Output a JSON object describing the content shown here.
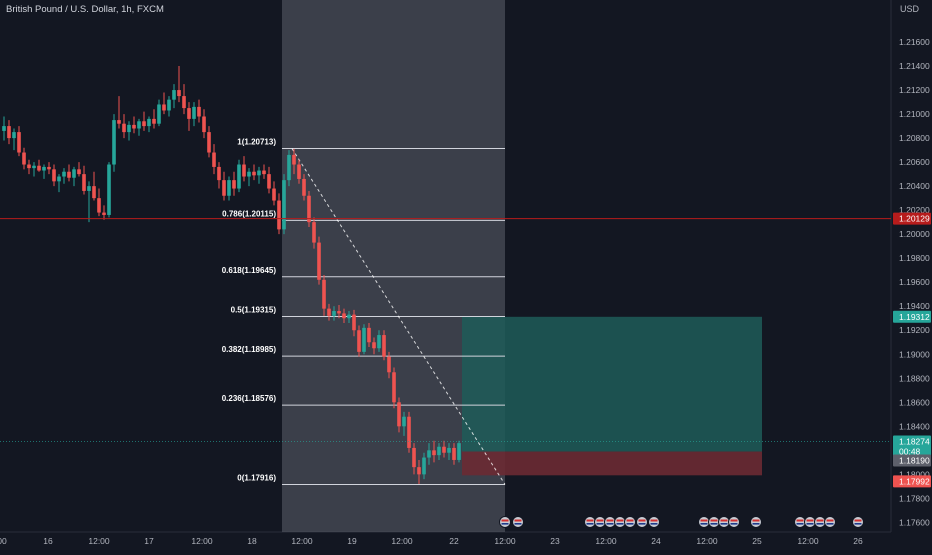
{
  "header": {
    "symbol_title": "British Pound / U.S. Dollar, 1h, FXCM",
    "currency": "USD"
  },
  "colors": {
    "background": "#131722",
    "up": "#26a69a",
    "down": "#ef5350",
    "grid_text": "#b2b5be",
    "fib_line": "#d1d4dc",
    "fib_zone": "#5d606b",
    "target_zone": "#1f5c58",
    "stop_zone": "#6b2a33",
    "current_price_line": "#b71c1c"
  },
  "chart_data": {
    "type": "candlestick",
    "title": "British Pound / U.S. Dollar, 1h, FXCM",
    "y_axis": {
      "side": "right",
      "range": [
        1.1752,
        1.2195
      ],
      "ticks": [
        "1.21600",
        "1.21400",
        "1.21200",
        "1.21000",
        "1.20800",
        "1.20600",
        "1.20400",
        "1.20200",
        "1.20000",
        "1.19800",
        "1.19600",
        "1.19400",
        "1.19200",
        "1.19000",
        "1.18800",
        "1.18600",
        "1.18400",
        "1.18200",
        "1.18000",
        "1.17800",
        "1.17600"
      ]
    },
    "x_axis": {
      "ticks": [
        "00",
        "16",
        "12:00",
        "17",
        "12:00",
        "18",
        "12:00",
        "19",
        "12:00",
        "22",
        "12:00",
        "23",
        "12:00",
        "24",
        "12:00",
        "25",
        "12:00",
        "26"
      ]
    },
    "price_labels": [
      {
        "id": "red-line",
        "value": "1.20129",
        "kind": "line"
      },
      {
        "id": "target",
        "value": "1.19312",
        "kind": "target"
      },
      {
        "id": "current",
        "value": "1.18274",
        "kind": "current"
      },
      {
        "id": "countdown",
        "value": "00:48",
        "kind": "countdown"
      },
      {
        "id": "entry",
        "value": "1.18190",
        "kind": "entry"
      },
      {
        "id": "stop",
        "value": "1.17992",
        "kind": "stop"
      }
    ],
    "fibonacci": [
      {
        "label": "1(1.20713)",
        "price": 1.20713
      },
      {
        "label": "0.786(1.20115)",
        "price": 1.20115
      },
      {
        "label": "0.618(1.19645)",
        "price": 1.19645
      },
      {
        "label": "0.5(1.19315)",
        "price": 1.19315
      },
      {
        "label": "0.382(1.18985)",
        "price": 1.18985
      },
      {
        "label": "0.236(1.18576)",
        "price": 1.18576
      },
      {
        "label": "0(1.17916)",
        "price": 1.17916
      }
    ],
    "position": {
      "target": 1.19312,
      "entry": 1.1819,
      "stop": 1.17992
    },
    "candles": [
      {
        "o": 1.2086,
        "h": 1.2098,
        "l": 1.2078,
        "c": 1.209
      },
      {
        "o": 1.209,
        "h": 1.2095,
        "l": 1.2075,
        "c": 1.208
      },
      {
        "o": 1.208,
        "h": 1.2088,
        "l": 1.207,
        "c": 1.2085
      },
      {
        "o": 1.2085,
        "h": 1.209,
        "l": 1.2065,
        "c": 1.2068
      },
      {
        "o": 1.2068,
        "h": 1.2072,
        "l": 1.2054,
        "c": 1.2058
      },
      {
        "o": 1.2058,
        "h": 1.2062,
        "l": 1.205,
        "c": 1.2055
      },
      {
        "o": 1.2055,
        "h": 1.206,
        "l": 1.2048,
        "c": 1.2057
      },
      {
        "o": 1.2057,
        "h": 1.2062,
        "l": 1.2052,
        "c": 1.2053
      },
      {
        "o": 1.2053,
        "h": 1.2058,
        "l": 1.2046,
        "c": 1.2056
      },
      {
        "o": 1.2056,
        "h": 1.206,
        "l": 1.205,
        "c": 1.2054
      },
      {
        "o": 1.2054,
        "h": 1.2058,
        "l": 1.204,
        "c": 1.2044
      },
      {
        "o": 1.2044,
        "h": 1.205,
        "l": 1.2035,
        "c": 1.2048
      },
      {
        "o": 1.2048,
        "h": 1.2055,
        "l": 1.2042,
        "c": 1.2052
      },
      {
        "o": 1.2052,
        "h": 1.2058,
        "l": 1.2044,
        "c": 1.2047
      },
      {
        "o": 1.2047,
        "h": 1.2056,
        "l": 1.204,
        "c": 1.2054
      },
      {
        "o": 1.2054,
        "h": 1.206,
        "l": 1.2048,
        "c": 1.205
      },
      {
        "o": 1.205,
        "h": 1.2057,
        "l": 1.2033,
        "c": 1.2036
      },
      {
        "o": 1.2036,
        "h": 1.2044,
        "l": 1.201,
        "c": 1.204
      },
      {
        "o": 1.204,
        "h": 1.2052,
        "l": 1.2028,
        "c": 1.203
      },
      {
        "o": 1.203,
        "h": 1.2038,
        "l": 1.2015,
        "c": 1.2018
      },
      {
        "o": 1.2018,
        "h": 1.2024,
        "l": 1.2012,
        "c": 1.2016
      },
      {
        "o": 1.2016,
        "h": 1.206,
        "l": 1.2014,
        "c": 1.2058
      },
      {
        "o": 1.2058,
        "h": 1.21,
        "l": 1.2052,
        "c": 1.2095
      },
      {
        "o": 1.2095,
        "h": 1.2115,
        "l": 1.2088,
        "c": 1.2092
      },
      {
        "o": 1.2092,
        "h": 1.21,
        "l": 1.208,
        "c": 1.2085
      },
      {
        "o": 1.2085,
        "h": 1.2094,
        "l": 1.2078,
        "c": 1.2091
      },
      {
        "o": 1.2091,
        "h": 1.2098,
        "l": 1.2084,
        "c": 1.2088
      },
      {
        "o": 1.2088,
        "h": 1.2096,
        "l": 1.2082,
        "c": 1.2094
      },
      {
        "o": 1.2094,
        "h": 1.2102,
        "l": 1.2086,
        "c": 1.209
      },
      {
        "o": 1.209,
        "h": 1.2098,
        "l": 1.2085,
        "c": 1.2096
      },
      {
        "o": 1.2096,
        "h": 1.2104,
        "l": 1.2088,
        "c": 1.2092
      },
      {
        "o": 1.2092,
        "h": 1.2112,
        "l": 1.209,
        "c": 1.2108
      },
      {
        "o": 1.2108,
        "h": 1.2118,
        "l": 1.21,
        "c": 1.2103
      },
      {
        "o": 1.2103,
        "h": 1.2115,
        "l": 1.2098,
        "c": 1.2112
      },
      {
        "o": 1.2112,
        "h": 1.2125,
        "l": 1.2105,
        "c": 1.212
      },
      {
        "o": 1.212,
        "h": 1.214,
        "l": 1.211,
        "c": 1.2115
      },
      {
        "o": 1.2115,
        "h": 1.2125,
        "l": 1.21,
        "c": 1.2105
      },
      {
        "o": 1.2105,
        "h": 1.211,
        "l": 1.2086,
        "c": 1.2096
      },
      {
        "o": 1.2096,
        "h": 1.211,
        "l": 1.209,
        "c": 1.2106
      },
      {
        "o": 1.2106,
        "h": 1.2112,
        "l": 1.2093,
        "c": 1.2098
      },
      {
        "o": 1.2098,
        "h": 1.2104,
        "l": 1.208,
        "c": 1.2085
      },
      {
        "o": 1.2085,
        "h": 1.209,
        "l": 1.2064,
        "c": 1.2068
      },
      {
        "o": 1.2068,
        "h": 1.2075,
        "l": 1.205,
        "c": 1.2056
      },
      {
        "o": 1.2056,
        "h": 1.206,
        "l": 1.2038,
        "c": 1.2045
      },
      {
        "o": 1.2045,
        "h": 1.2052,
        "l": 1.2028,
        "c": 1.2032
      },
      {
        "o": 1.2032,
        "h": 1.2048,
        "l": 1.2028,
        "c": 1.2045
      },
      {
        "o": 1.2045,
        "h": 1.2052,
        "l": 1.2032,
        "c": 1.2038
      },
      {
        "o": 1.2038,
        "h": 1.2062,
        "l": 1.2035,
        "c": 1.2058
      },
      {
        "o": 1.2058,
        "h": 1.2065,
        "l": 1.2044,
        "c": 1.2048
      },
      {
        "o": 1.2048,
        "h": 1.2055,
        "l": 1.204,
        "c": 1.2052
      },
      {
        "o": 1.2052,
        "h": 1.2058,
        "l": 1.2045,
        "c": 1.2049
      },
      {
        "o": 1.2049,
        "h": 1.2056,
        "l": 1.2042,
        "c": 1.2053
      },
      {
        "o": 1.2053,
        "h": 1.2058,
        "l": 1.2046,
        "c": 1.205
      },
      {
        "o": 1.205,
        "h": 1.2056,
        "l": 1.2034,
        "c": 1.2038
      },
      {
        "o": 1.2038,
        "h": 1.2044,
        "l": 1.2024,
        "c": 1.2028
      },
      {
        "o": 1.2028,
        "h": 1.2034,
        "l": 1.2,
        "c": 1.2004
      },
      {
        "o": 1.2004,
        "h": 1.205,
        "l": 1.2,
        "c": 1.2045
      },
      {
        "o": 1.2045,
        "h": 1.207,
        "l": 1.204,
        "c": 1.2066
      },
      {
        "o": 1.2066,
        "h": 1.2071,
        "l": 1.205,
        "c": 1.2058
      },
      {
        "o": 1.2058,
        "h": 1.2062,
        "l": 1.2042,
        "c": 1.2046
      },
      {
        "o": 1.2046,
        "h": 1.205,
        "l": 1.2028,
        "c": 1.2032
      },
      {
        "o": 1.2032,
        "h": 1.2036,
        "l": 1.2006,
        "c": 1.201
      },
      {
        "o": 1.201,
        "h": 1.2014,
        "l": 1.1988,
        "c": 1.1993
      },
      {
        "o": 1.1993,
        "h": 1.1998,
        "l": 1.1958,
        "c": 1.1962
      },
      {
        "o": 1.1962,
        "h": 1.1966,
        "l": 1.1932,
        "c": 1.1938
      },
      {
        "o": 1.1938,
        "h": 1.1942,
        "l": 1.1928,
        "c": 1.1932
      },
      {
        "o": 1.1932,
        "h": 1.194,
        "l": 1.1928,
        "c": 1.1936
      },
      {
        "o": 1.1936,
        "h": 1.1941,
        "l": 1.193,
        "c": 1.1934
      },
      {
        "o": 1.1934,
        "h": 1.1938,
        "l": 1.1926,
        "c": 1.193
      },
      {
        "o": 1.193,
        "h": 1.1936,
        "l": 1.1926,
        "c": 1.1933
      },
      {
        "o": 1.1933,
        "h": 1.1937,
        "l": 1.1915,
        "c": 1.192
      },
      {
        "o": 1.192,
        "h": 1.1924,
        "l": 1.1898,
        "c": 1.1902
      },
      {
        "o": 1.1902,
        "h": 1.1925,
        "l": 1.19,
        "c": 1.1922
      },
      {
        "o": 1.1922,
        "h": 1.1926,
        "l": 1.1906,
        "c": 1.191
      },
      {
        "o": 1.191,
        "h": 1.1914,
        "l": 1.19,
        "c": 1.1905
      },
      {
        "o": 1.1905,
        "h": 1.192,
        "l": 1.1902,
        "c": 1.1916
      },
      {
        "o": 1.1916,
        "h": 1.192,
        "l": 1.1895,
        "c": 1.1898
      },
      {
        "o": 1.1898,
        "h": 1.1902,
        "l": 1.188,
        "c": 1.1885
      },
      {
        "o": 1.1885,
        "h": 1.1889,
        "l": 1.1855,
        "c": 1.186
      },
      {
        "o": 1.186,
        "h": 1.1864,
        "l": 1.1835,
        "c": 1.184
      },
      {
        "o": 1.184,
        "h": 1.1852,
        "l": 1.1832,
        "c": 1.1848
      },
      {
        "o": 1.1848,
        "h": 1.1852,
        "l": 1.1818,
        "c": 1.1822
      },
      {
        "o": 1.1822,
        "h": 1.1826,
        "l": 1.18,
        "c": 1.1806
      },
      {
        "o": 1.1806,
        "h": 1.1812,
        "l": 1.1792,
        "c": 1.18
      },
      {
        "o": 1.18,
        "h": 1.1818,
        "l": 1.1796,
        "c": 1.1814
      },
      {
        "o": 1.1814,
        "h": 1.1826,
        "l": 1.1808,
        "c": 1.182
      },
      {
        "o": 1.182,
        "h": 1.1828,
        "l": 1.181,
        "c": 1.1816
      },
      {
        "o": 1.1816,
        "h": 1.1826,
        "l": 1.1812,
        "c": 1.1823
      },
      {
        "o": 1.1823,
        "h": 1.1828,
        "l": 1.1814,
        "c": 1.1818
      },
      {
        "o": 1.1818,
        "h": 1.1826,
        "l": 1.1812,
        "c": 1.1822
      },
      {
        "o": 1.1822,
        "h": 1.1826,
        "l": 1.1808,
        "c": 1.1812
      },
      {
        "o": 1.1812,
        "h": 1.1828,
        "l": 1.181,
        "c": 1.1826
      }
    ]
  }
}
